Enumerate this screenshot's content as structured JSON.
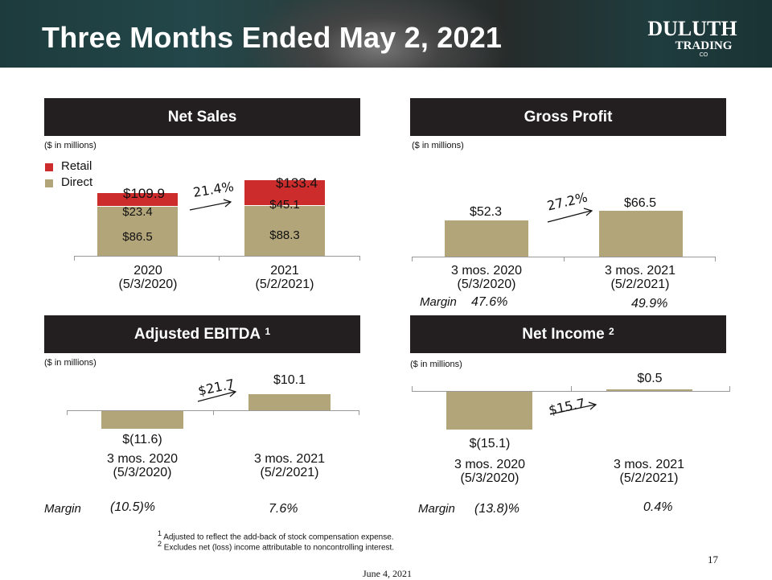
{
  "slide": {
    "title": "Three Months Ended May 2, 2021",
    "logo": {
      "line1": "DULUTH",
      "line2": "TRADING",
      "line3": "CO"
    },
    "page_number": "17",
    "date": "June 4, 2021",
    "footnote1_mark": "1",
    "footnote1": "Adjusted to reflect the add-back of stock compensation expense.",
    "footnote2_mark": "2",
    "footnote2": "Excludes net (loss) income attributable to noncontrolling interest."
  },
  "colors": {
    "header_bg": "#231f20",
    "direct": "#b3a57a",
    "retail": "#cc2c2c"
  },
  "panels": {
    "net_sales": {
      "title": "Net Sales",
      "unit": "($ in millions)",
      "legend": [
        "Retail",
        "Direct"
      ],
      "growth": "21.4%",
      "bars": [
        {
          "x1": "2020",
          "x2": "(5/3/2020)",
          "total": "$109.9",
          "direct": "$86.5",
          "retail": "$23.4"
        },
        {
          "x1": "2021",
          "x2": "(5/2/2021)",
          "total": "$133.4",
          "direct": "$88.3",
          "retail": "$45.1"
        }
      ]
    },
    "gross_profit": {
      "title": "Gross Profit",
      "unit": "($ in millions)",
      "growth": "27.2%",
      "margin_label": "Margin",
      "bars": [
        {
          "x1": "3 mos. 2020",
          "x2": "(5/3/2020)",
          "value_label": "$52.3",
          "margin": "47.6%"
        },
        {
          "x1": "3 mos. 2021",
          "x2": "(5/2/2021)",
          "value_label": "$66.5",
          "margin": "49.9%"
        }
      ]
    },
    "adj_ebitda": {
      "title": "Adjusted EBITDA",
      "title_sup": "1",
      "unit": "($ in millions)",
      "growth": "$21.7",
      "margin_label": "Margin",
      "bars": [
        {
          "x1": "3 mos. 2020",
          "x2": "(5/3/2020)",
          "value_label": "$(11.6)",
          "margin": "(10.5)%"
        },
        {
          "x1": "3 mos. 2021",
          "x2": "(5/2/2021)",
          "value_label": "$10.1",
          "margin": "7.6%"
        }
      ]
    },
    "net_income": {
      "title": "Net Income",
      "title_sup": "2",
      "unit": "($ in millions)",
      "growth": "$15.7",
      "margin_label": "Margin",
      "bars": [
        {
          "x1": "3 mos. 2020",
          "x2": "(5/3/2020)",
          "value_label": "$(15.1)",
          "margin": "(13.8)%"
        },
        {
          "x1": "3 mos. 2021",
          "x2": "(5/2/2021)",
          "value_label": "$0.5",
          "margin": "0.4%"
        }
      ]
    }
  },
  "chart_data": [
    {
      "type": "bar",
      "title": "Net Sales",
      "ylabel": "($ in millions)",
      "stacked": true,
      "categories": [
        "2020 (5/3/2020)",
        "2021 (5/2/2021)"
      ],
      "series": [
        {
          "name": "Direct",
          "values": [
            86.5,
            88.3
          ]
        },
        {
          "name": "Retail",
          "values": [
            23.4,
            45.1
          ]
        }
      ],
      "totals": [
        109.9,
        133.4
      ],
      "annotation": "21.4%",
      "legend_placement": "top-left"
    },
    {
      "type": "bar",
      "title": "Gross Profit",
      "ylabel": "($ in millions)",
      "categories": [
        "3 mos. 2020 (5/3/2020)",
        "3 mos. 2021 (5/2/2021)"
      ],
      "values": [
        52.3,
        66.5
      ],
      "margin": [
        "47.6%",
        "49.9%"
      ],
      "annotation": "27.2%"
    },
    {
      "type": "bar",
      "title": "Adjusted EBITDA 1",
      "ylabel": "($ in millions)",
      "categories": [
        "3 mos. 2020 (5/3/2020)",
        "3 mos. 2021 (5/2/2021)"
      ],
      "values": [
        -11.6,
        10.1
      ],
      "margin": [
        "(10.5)%",
        "7.6%"
      ],
      "annotation": "$21.7"
    },
    {
      "type": "bar",
      "title": "Net Income 2",
      "ylabel": "($ in millions)",
      "categories": [
        "3 mos. 2020 (5/3/2020)",
        "3 mos. 2021 (5/2/2021)"
      ],
      "values": [
        -15.1,
        0.5
      ],
      "margin": [
        "(13.8)%",
        "0.4%"
      ],
      "annotation": "$15.7"
    }
  ]
}
